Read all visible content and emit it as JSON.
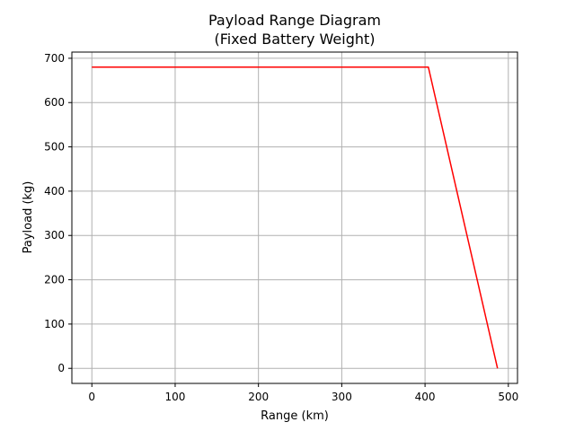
{
  "chart_data": {
    "type": "line",
    "title": "Payload Range Diagram",
    "subtitle": "(Fixed Battery Weight)",
    "xlabel": "Range (km)",
    "ylabel": "Payload (kg)",
    "xlim": [
      -24,
      511
    ],
    "ylim": [
      -34,
      714
    ],
    "xticks": [
      0,
      100,
      200,
      300,
      400,
      500
    ],
    "yticks": [
      0,
      100,
      200,
      300,
      400,
      500,
      600,
      700
    ],
    "grid": true,
    "series": [
      {
        "name": "payload-range",
        "color": "#ff0000",
        "x": [
          0,
          404,
          487
        ],
        "y": [
          680,
          680,
          0
        ]
      }
    ]
  },
  "colors": {
    "line": "#ff0000",
    "grid": "#b0b0b0",
    "axes": "#000000"
  }
}
